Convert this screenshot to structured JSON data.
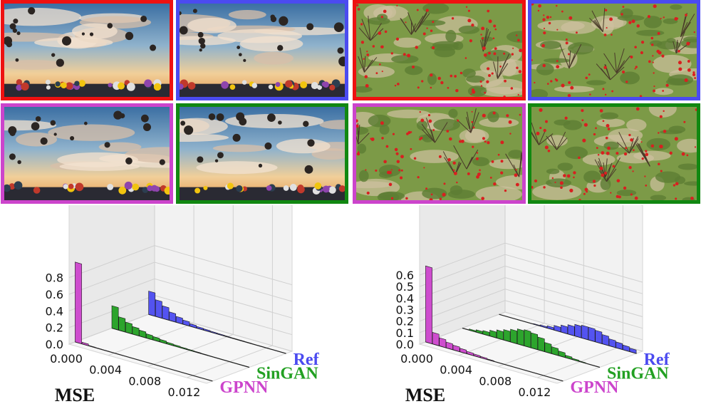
{
  "colors": {
    "ref": "#4b4bf0",
    "singan": "#22a022",
    "gpnn": "#cc44cc",
    "frame_red": "#ee1111",
    "frame_blue": "#4b4bf0",
    "frame_magenta": "#cc44cc",
    "frame_green": "#118811"
  },
  "images": [
    {
      "name": "balloons-reference",
      "scene": "balloons",
      "frame": "frame_red"
    },
    {
      "name": "balloons-singan",
      "scene": "balloons",
      "frame": "frame_blue"
    },
    {
      "name": "balloons-gpnn",
      "scene": "balloons",
      "frame": "frame_magenta"
    },
    {
      "name": "balloons-variant",
      "scene": "balloons",
      "frame": "frame_green"
    },
    {
      "name": "poppies-reference",
      "scene": "poppies",
      "frame": "frame_red"
    },
    {
      "name": "poppies-singan",
      "scene": "poppies",
      "frame": "frame_blue"
    },
    {
      "name": "poppies-gpnn",
      "scene": "poppies",
      "frame": "frame_magenta"
    },
    {
      "name": "poppies-variant",
      "scene": "poppies",
      "frame": "frame_green"
    }
  ],
  "chart_data": [
    {
      "type": "bar",
      "projection": "3d",
      "xlabel": "MSE",
      "x_ticks": [
        "0.000",
        "0.004",
        "0.008",
        "0.012"
      ],
      "z_ticks": [
        "0.0",
        "0.2",
        "0.4",
        "0.6",
        "0.8"
      ],
      "zlim": [
        0,
        0.9
      ],
      "bins": 20,
      "series": [
        {
          "name": "Ref",
          "color": "ref",
          "values": [
            0.28,
            0.2,
            0.15,
            0.1,
            0.07,
            0.05,
            0.03,
            0.02,
            0.015,
            0.01,
            0.008,
            0.006,
            0.005,
            0.004,
            0.003,
            0.002,
            0.002,
            0.001,
            0.001,
            0.001
          ]
        },
        {
          "name": "SinGAN",
          "color": "singan",
          "values": [
            0.27,
            0.16,
            0.12,
            0.09,
            0.07,
            0.05,
            0.04,
            0.03,
            0.02,
            0.015,
            0.01,
            0.008,
            0.006,
            0.004,
            0.003,
            0.002,
            0.002,
            0.001,
            0.001,
            0.001
          ]
        },
        {
          "name": "GPNN",
          "color": "gpnn",
          "values": [
            0.96,
            0.02,
            0.005,
            0.003,
            0.002,
            0.001,
            0.001,
            0,
            0,
            0,
            0,
            0,
            0,
            0,
            0,
            0,
            0,
            0,
            0,
            0
          ]
        }
      ]
    },
    {
      "type": "bar",
      "projection": "3d",
      "xlabel": "MSE",
      "x_ticks": [
        "0.000",
        "0.004",
        "0.008",
        "0.012"
      ],
      "z_ticks": [
        "0.0",
        "0.1",
        "0.2",
        "0.3",
        "0.4",
        "0.5",
        "0.6"
      ],
      "zlim": [
        0,
        0.65
      ],
      "bins": 20,
      "series": [
        {
          "name": "Ref",
          "color": "ref",
          "values": [
            0,
            0,
            0,
            0,
            0,
            0.005,
            0.01,
            0.02,
            0.04,
            0.06,
            0.08,
            0.1,
            0.11,
            0.11,
            0.1,
            0.08,
            0.06,
            0.05,
            0.04,
            0.03
          ]
        },
        {
          "name": "SinGAN",
          "color": "singan",
          "values": [
            0,
            0.01,
            0.02,
            0.03,
            0.05,
            0.07,
            0.09,
            0.11,
            0.13,
            0.14,
            0.13,
            0.11,
            0.08,
            0.06,
            0.04,
            0.02,
            0.01,
            0.005,
            0,
            0
          ]
        },
        {
          "name": "GPNN",
          "color": "gpnn",
          "values": [
            0.66,
            0.1,
            0.07,
            0.05,
            0.04,
            0.03,
            0.02,
            0.015,
            0.01,
            0.005,
            0,
            0,
            0,
            0,
            0,
            0,
            0,
            0,
            0,
            0
          ]
        }
      ]
    }
  ]
}
